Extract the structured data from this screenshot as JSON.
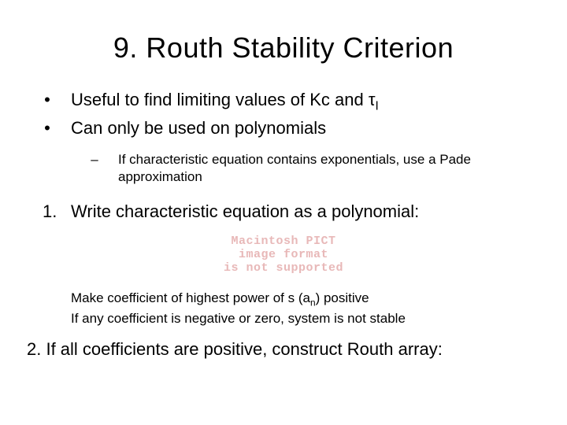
{
  "title": "9. Routh Stability Criterion",
  "bullets": [
    "Useful to find limiting values of Kc and τI",
    "Can only be used on polynomials"
  ],
  "sub_bullet": "If characteristic equation contains exponentials, use a Pade approximation",
  "numbered_1": "Write characteristic equation as a polynomial:",
  "pict_lines": [
    "Macintosh PICT",
    "image format",
    "is not supported"
  ],
  "notes": [
    "Make coefficient of highest power of s (an) positive",
    "If any coefficient is negative or zero, system is not stable"
  ],
  "final": "2. If all coefficients are positive, construct Routh array:",
  "marks": {
    "bullet": "•",
    "dash": "–",
    "one": "1."
  },
  "colors": {
    "background": "#ffffff",
    "text": "#000000",
    "pict_text": "#e8b8b8"
  },
  "typography": {
    "title_fontsize": 36,
    "body_fontsize": 22,
    "sub_fontsize": 17,
    "note_fontsize": 17,
    "pict_fontsize": 15,
    "font_family": "Arial"
  }
}
